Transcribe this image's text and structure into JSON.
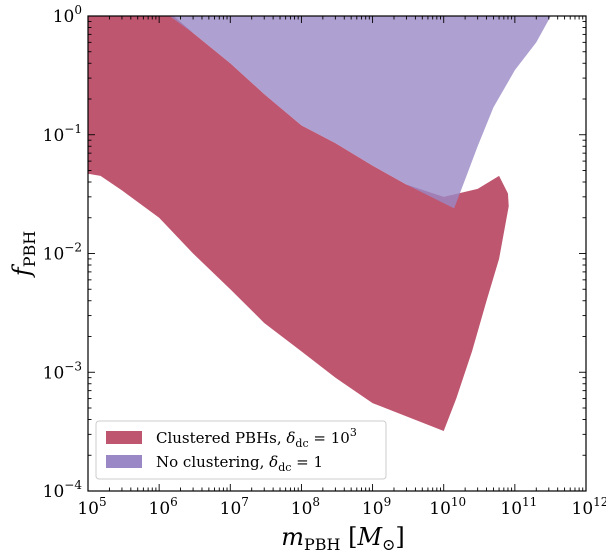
{
  "chart_data": {
    "type": "area",
    "xlabel": "m_PBH [M_⊙]",
    "ylabel": "f_PBH",
    "x_scale": "log",
    "y_scale": "log",
    "xlim": [
      100000.0,
      1000000000000.0
    ],
    "ylim": [
      0.0001,
      1
    ],
    "x_ticks": [
      {
        "value": 100000.0,
        "base": "10",
        "exp": "5"
      },
      {
        "value": 1000000.0,
        "base": "10",
        "exp": "6"
      },
      {
        "value": 10000000.0,
        "base": "10",
        "exp": "7"
      },
      {
        "value": 100000000.0,
        "base": "10",
        "exp": "8"
      },
      {
        "value": 1000000000.0,
        "base": "10",
        "exp": "9"
      },
      {
        "value": 10000000000.0,
        "base": "10",
        "exp": "10"
      },
      {
        "value": 100000000000.0,
        "base": "10",
        "exp": "11"
      },
      {
        "value": 1000000000000.0,
        "base": "10",
        "exp": "12"
      }
    ],
    "y_ticks": [
      {
        "value": 0.0001,
        "base": "10",
        "exp": "−4"
      },
      {
        "value": 0.001,
        "base": "10",
        "exp": "−3"
      },
      {
        "value": 0.01,
        "base": "10",
        "exp": "−2"
      },
      {
        "value": 0.1,
        "base": "10",
        "exp": "−1"
      },
      {
        "value": 1,
        "base": "10",
        "exp": "0"
      }
    ],
    "grid": false,
    "legend_position": "lower-left",
    "series": [
      {
        "name": "Clustered PBHs, δ_dc = 10^3",
        "color": "#bf5670",
        "upper_boundary": [
          [
            100000.0,
            1
          ],
          [
            1600000.0,
            1
          ],
          [
            3000000.0,
            0.72
          ],
          [
            10000000.0,
            0.4
          ],
          [
            30000000.0,
            0.22
          ],
          [
            100000000.0,
            0.12
          ],
          [
            300000000.0,
            0.085
          ],
          [
            1000000000.0,
            0.055
          ],
          [
            3000000000.0,
            0.038
          ],
          [
            10000000000.0,
            0.03
          ],
          [
            30000000000.0,
            0.035
          ],
          [
            60000000000.0,
            0.045
          ],
          [
            80000000000.0,
            0.032
          ],
          [
            82000000000.0,
            0.025
          ]
        ],
        "lower_boundary": [
          [
            100000.0,
            0.047
          ],
          [
            150000.0,
            0.045
          ],
          [
            300000.0,
            0.034
          ],
          [
            1000000.0,
            0.02
          ],
          [
            3000000.0,
            0.01
          ],
          [
            10000000.0,
            0.005
          ],
          [
            30000000.0,
            0.0026
          ],
          [
            100000000.0,
            0.0015
          ],
          [
            300000000.0,
            0.0009
          ],
          [
            1000000000.0,
            0.00055
          ],
          [
            10000000000.0,
            0.00032
          ],
          [
            15000000000.0,
            0.0006
          ],
          [
            25000000000.0,
            0.0015
          ],
          [
            40000000000.0,
            0.004
          ],
          [
            60000000000.0,
            0.009
          ],
          [
            82000000000.0,
            0.025
          ]
        ]
      },
      {
        "name": "No clustering, δ_dc = 1",
        "color": "#9a88c6",
        "upper_boundary": [
          [
            1400000.0,
            1
          ],
          [
            320000000000.0,
            1
          ]
        ],
        "lower_boundary": [
          [
            1400000.0,
            1
          ],
          [
            3000000.0,
            0.72
          ],
          [
            10000000.0,
            0.4
          ],
          [
            30000000.0,
            0.22
          ],
          [
            100000000.0,
            0.12
          ],
          [
            300000000.0,
            0.085
          ],
          [
            1000000000.0,
            0.055
          ],
          [
            3000000000.0,
            0.038
          ],
          [
            14000000000.0,
            0.024
          ],
          [
            20000000000.0,
            0.042
          ],
          [
            30000000000.0,
            0.08
          ],
          [
            50000000000.0,
            0.17
          ],
          [
            100000000000.0,
            0.35
          ],
          [
            200000000000.0,
            0.6
          ],
          [
            320000000000.0,
            1
          ]
        ]
      }
    ],
    "legend": [
      {
        "label": "Clustered PBHs, ",
        "math": "δ",
        "sub": "dc",
        "eq": " = 10",
        "sup": "3",
        "color": "#bf5670"
      },
      {
        "label": "No clustering, ",
        "math": "δ",
        "sub": "dc",
        "eq": " = 1",
        "sup": "",
        "color": "#9a88c6"
      }
    ]
  }
}
